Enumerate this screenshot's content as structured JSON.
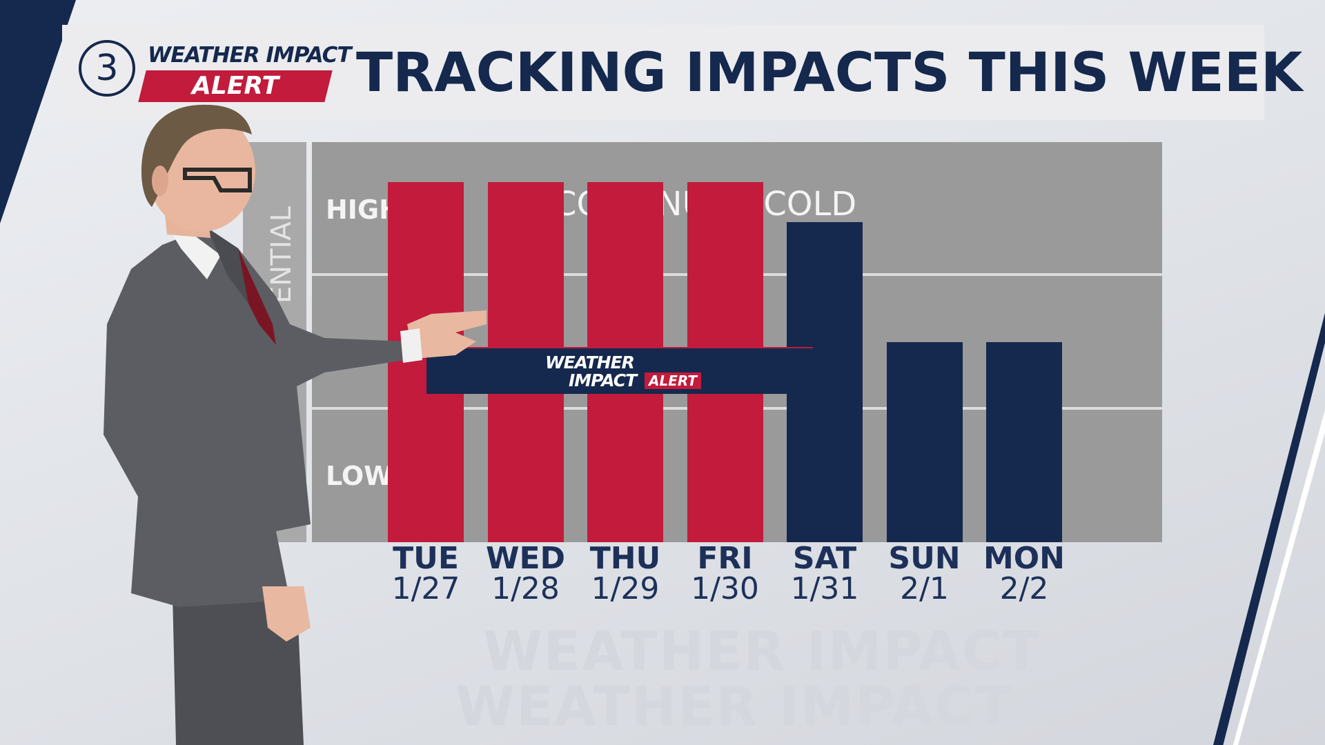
{
  "header": {
    "station_number": "3",
    "logo_line1": "WEATHER IMPACT",
    "logo_line2": "ALERT",
    "title": "TRACKING IMPACTS THIS WEEK"
  },
  "banner": {
    "line1": "WEATHER",
    "line2": "IMPACT",
    "tag": "ALERT"
  },
  "colors": {
    "navy": "#15284d",
    "red": "#c21b3c",
    "chart_bg": "#9a9a9a"
  },
  "chart_data": {
    "type": "bar",
    "title": "TRACKING IMPACTS THIS WEEK",
    "ylabel": "ENTIAL",
    "y_levels": [
      "LOW",
      "HIGH"
    ],
    "ylim": [
      0,
      3
    ],
    "annotation": "CONTINUED COLD",
    "categories": [
      "TUE",
      "WED",
      "THU",
      "FRI",
      "SAT",
      "SUN",
      "MON"
    ],
    "dates": [
      "1/27",
      "1/28",
      "1/29",
      "1/30",
      "1/31",
      "2/1",
      "2/2"
    ],
    "values": [
      2.7,
      2.7,
      2.7,
      2.7,
      2.4,
      1.5,
      1.5
    ],
    "bar_colors": [
      "#c21b3c",
      "#c21b3c",
      "#c21b3c",
      "#c21b3c",
      "#15284d",
      "#15284d",
      "#15284d"
    ],
    "alert_span": [
      "TUE",
      "FRI"
    ],
    "grid": true
  },
  "watermark_text": "WEATHER IMPACT"
}
